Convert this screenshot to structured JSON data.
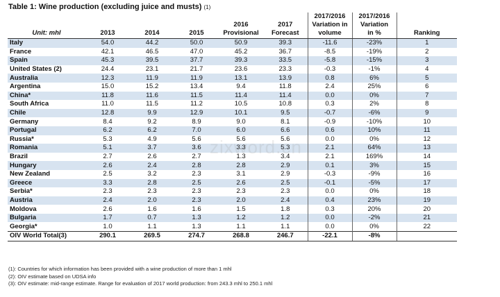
{
  "title": {
    "text": "Table 1: Wine production (excluding juice and musts)",
    "note": "(1)"
  },
  "headers": {
    "unit": "Unit: mhl",
    "y2013": "2013",
    "y2014": "2014",
    "y2015": "2015",
    "y2016_line1": "2016",
    "y2016_line2": "Provisional",
    "y2017_line1": "2017",
    "y2017_line2": "Forecast",
    "var_vol_line1": "2017/2016",
    "var_vol_line2": "Variation in",
    "var_vol_line3": "volume",
    "var_pct_line1": "2017/2016",
    "var_pct_line2": "Variation",
    "var_pct_line3": "in %",
    "ranking": "Ranking"
  },
  "rows": [
    [
      "Italy",
      "54.0",
      "44.2",
      "50.0",
      "50.9",
      "39.3",
      "-11.6",
      "-23%",
      "1"
    ],
    [
      "France",
      "42.1",
      "46.5",
      "47.0",
      "45.2",
      "36.7",
      "-8.5",
      "-19%",
      "2"
    ],
    [
      "Spain",
      "45.3",
      "39.5",
      "37.7",
      "39.3",
      "33.5",
      "-5.8",
      "-15%",
      "3"
    ],
    [
      "United States (2)",
      "24.4",
      "23.1",
      "21.7",
      "23.6",
      "23.3",
      "-0.3",
      "-1%",
      "4"
    ],
    [
      "Australia",
      "12.3",
      "11.9",
      "11.9",
      "13.1",
      "13.9",
      "0.8",
      "6%",
      "5"
    ],
    [
      "Argentina",
      "15.0",
      "15.2",
      "13.4",
      "9.4",
      "11.8",
      "2.4",
      "25%",
      "6"
    ],
    [
      "China*",
      "11.8",
      "11.6",
      "11.5",
      "11.4",
      "11.4",
      "0.0",
      "0%",
      "7"
    ],
    [
      "South Africa",
      "11.0",
      "11.5",
      "11.2",
      "10.5",
      "10.8",
      "0.3",
      "2%",
      "8"
    ],
    [
      "Chile",
      "12.8",
      "9.9",
      "12.9",
      "10.1",
      "9.5",
      "-0.7",
      "-6%",
      "9"
    ],
    [
      "Germany",
      "8.4",
      "9.2",
      "8.9",
      "9.0",
      "8.1",
      "-0.9",
      "-10%",
      "10"
    ],
    [
      "Portugal",
      "6.2",
      "6.2",
      "7.0",
      "6.0",
      "6.6",
      "0.6",
      "10%",
      "11"
    ],
    [
      "Russia*",
      "5.3",
      "4.9",
      "5.6",
      "5.6",
      "5.6",
      "0.0",
      "0%",
      "12"
    ],
    [
      "Romania",
      "5.1",
      "3.7",
      "3.6",
      "3.3",
      "5.3",
      "2.1",
      "64%",
      "13"
    ],
    [
      "Brazil",
      "2.7",
      "2.6",
      "2.7",
      "1.3",
      "3.4",
      "2.1",
      "169%",
      "14"
    ],
    [
      "Hungary",
      "2.6",
      "2.4",
      "2.8",
      "2.8",
      "2.9",
      "0.1",
      "3%",
      "15"
    ],
    [
      "New Zealand",
      "2.5",
      "3.2",
      "2.3",
      "3.1",
      "2.9",
      "-0.3",
      "-9%",
      "16"
    ],
    [
      "Greece",
      "3.3",
      "2.8",
      "2.5",
      "2.6",
      "2.5",
      "-0.1",
      "-5%",
      "17"
    ],
    [
      "Serbia*",
      "2.3",
      "2.3",
      "2.3",
      "2.3",
      "2.3",
      "0.0",
      "0%",
      "18"
    ],
    [
      "Austria",
      "2.4",
      "2.0",
      "2.3",
      "2.0",
      "2.4",
      "0.4",
      "23%",
      "19"
    ],
    [
      "Moldova",
      "2.6",
      "1.6",
      "1.6",
      "1.5",
      "1.8",
      "0.3",
      "20%",
      "20"
    ],
    [
      "Bulgaria",
      "1.7",
      "0.7",
      "1.3",
      "1.2",
      "1.2",
      "0.0",
      "-2%",
      "21"
    ],
    [
      "Georgia*",
      "1.0",
      "1.1",
      "1.3",
      "1.1",
      "1.1",
      "0.0",
      "0%",
      "22"
    ]
  ],
  "total": [
    "OIV World Total(3)",
    "290.1",
    "269.5",
    "274.7",
    "268.8",
    "246.7",
    "-22.1",
    "-8%",
    ""
  ],
  "footnotes": [
    "(1): Countries for which information has been provided with a wine production of more than 1 mhl",
    "(2): OIV estimate based on UDSA info",
    "(3): OIV estimate: mid-range estimate. Range for evaluation of 2017 world production: from 243.3 mhl to 250.1 mhl"
  ],
  "watermark": "zixword.cn",
  "colors": {
    "stripe": "#d7e3f0",
    "rule": "#333333"
  }
}
